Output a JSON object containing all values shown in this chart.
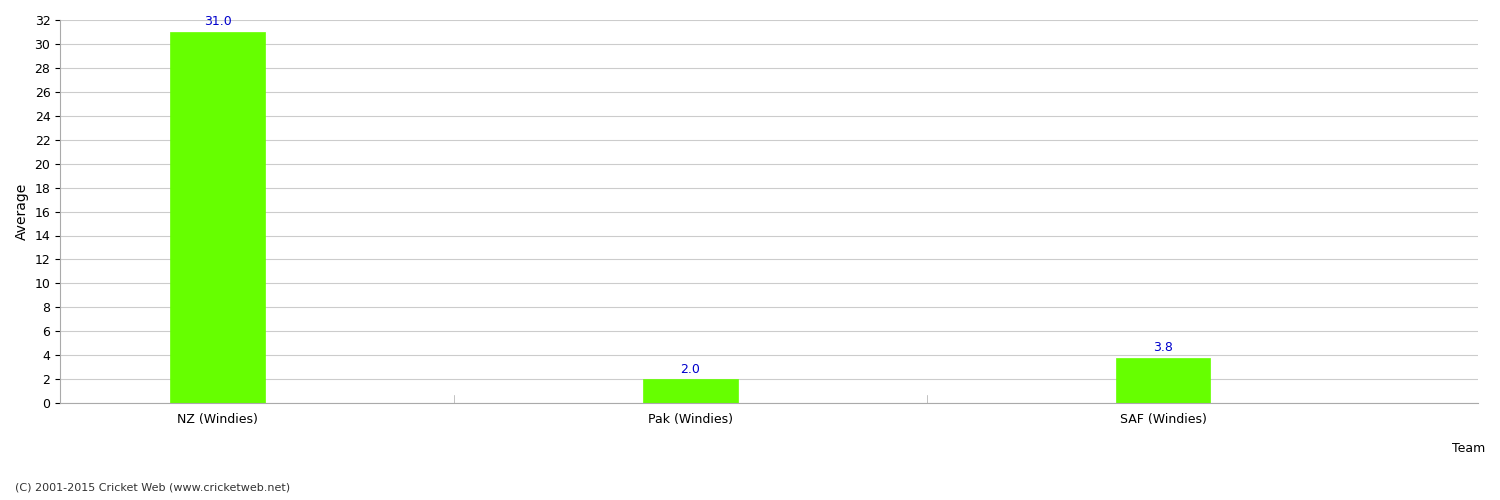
{
  "categories": [
    "NZ (Windies)",
    "Pak (Windies)",
    "SAF (Windies)"
  ],
  "values": [
    31.0,
    2.0,
    3.8
  ],
  "bar_color": "#66ff00",
  "bar_edgecolor": "#66ff00",
  "xlabel": "Team",
  "ylabel": "Average",
  "ylim": [
    0,
    32
  ],
  "yticks": [
    0,
    2,
    4,
    6,
    8,
    10,
    12,
    14,
    16,
    18,
    20,
    22,
    24,
    26,
    28,
    30,
    32
  ],
  "annotation_color": "#0000cc",
  "annotation_fontsize": 9,
  "grid_color": "#cccccc",
  "background_color": "#ffffff",
  "label_fontsize": 10,
  "tick_fontsize": 9,
  "footer_text": "(C) 2001-2015 Cricket Web (www.cricketweb.net)",
  "footer_fontsize": 8,
  "bar_width": 0.6,
  "x_positions": [
    1,
    4,
    7
  ],
  "xlim": [
    0,
    9
  ]
}
